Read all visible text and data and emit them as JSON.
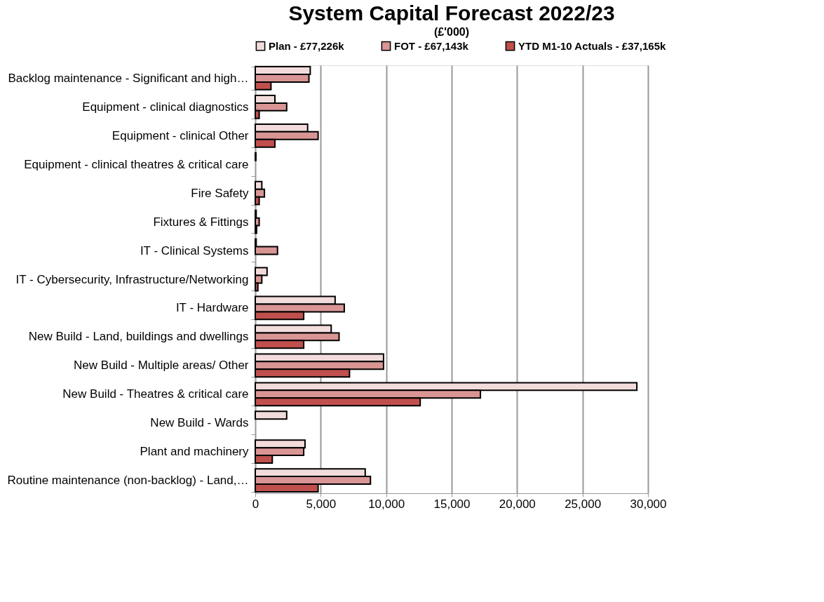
{
  "chart_data": {
    "type": "bar",
    "orientation": "horizontal",
    "title": "System Capital Forecast 2022/23",
    "subtitle": "(£'000)",
    "categories": [
      "Backlog maintenance - Significant and high…",
      "Equipment - clinical diagnostics",
      "Equipment - clinical Other",
      "Equipment - clinical theatres & critical care",
      "Fire Safety",
      "Fixtures & Fittings",
      "IT - Clinical Systems",
      "IT - Cybersecurity, Infrastructure/Networking",
      "IT - Hardware",
      "New Build - Land, buildings and dwellings",
      "New Build - Multiple areas/ Other",
      "New Build - Theatres & critical care",
      "New Build - Wards",
      "Plant and machinery",
      "Routine maintenance (non-backlog) - Land,…"
    ],
    "series": [
      {
        "name": "Plan - £77,226k",
        "color": "#f2dcdb",
        "values": [
          4200,
          1500,
          4000,
          50,
          500,
          70,
          70,
          900,
          6100,
          5800,
          9800,
          29150,
          2400,
          3800,
          8400
        ]
      },
      {
        "name": "FOT - £67,143k",
        "color": "#d99594",
        "values": [
          4100,
          2400,
          4800,
          null,
          700,
          300,
          1700,
          500,
          6800,
          6400,
          9800,
          17200,
          null,
          3700,
          8800
        ]
      },
      {
        "name": "YTD M1-10 Actuals - £37,165k",
        "color": "#c0504d",
        "values": [
          1200,
          300,
          1500,
          null,
          300,
          100,
          null,
          200,
          3700,
          3700,
          7200,
          12600,
          null,
          1300,
          4800
        ]
      }
    ],
    "xlim": [
      0,
      30000
    ],
    "xticks": [
      0,
      {
        "value": 5000,
        "label": "5,000"
      },
      {
        "value": 10000,
        "label": "10,000"
      },
      {
        "value": 15000,
        "label": "15,000"
      },
      {
        "value": 20000,
        "label": "20,000"
      },
      {
        "value": 25000,
        "label": "25,000"
      },
      {
        "value": 30000,
        "label": "30,000"
      }
    ],
    "grid": "x",
    "legend": "top"
  }
}
